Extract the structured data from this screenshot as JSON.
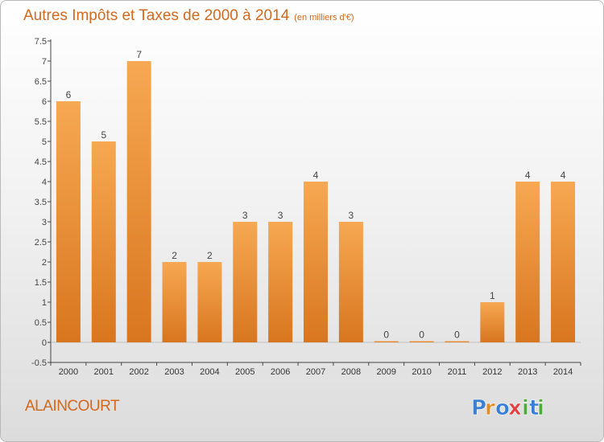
{
  "header": {
    "title": "Autres Impôts et Taxes de 2000 à 2014",
    "unit": "(en milliers d'€)"
  },
  "footer": {
    "commune": "ALAINCOURT"
  },
  "logo": {
    "text": "Proxiti",
    "letters": [
      "P",
      "r",
      "o",
      "x",
      "i",
      "t",
      "i"
    ],
    "letter_colors": [
      "#3a7fd6",
      "#e58b1e",
      "#3a7fd6",
      "#e04040",
      "#4fa83a",
      "#3a7fd6",
      "#4fa83a"
    ]
  },
  "colors": {
    "bar_light": "#f7a852",
    "bar_dark": "#d8761f",
    "text_accent": "#d2691e"
  },
  "chart_data": {
    "type": "bar",
    "title": "Autres Impôts et Taxes de 2000 à 2014",
    "categories": [
      "2000",
      "2001",
      "2002",
      "2003",
      "2004",
      "2005",
      "2006",
      "2007",
      "2008",
      "2009",
      "2010",
      "2011",
      "2012",
      "2013",
      "2014"
    ],
    "values": [
      6,
      5,
      7,
      2,
      2,
      3,
      3,
      4,
      3,
      0,
      0,
      0,
      1,
      4,
      4
    ],
    "data_labels": [
      "6",
      "5",
      "7",
      "2",
      "2",
      "3",
      "3",
      "4",
      "3",
      "0",
      "0",
      "0",
      "1",
      "4",
      "4"
    ],
    "yticks": [
      "-0.5",
      "0",
      "0.5",
      "1",
      "1.5",
      "2",
      "2.5",
      "3",
      "3.5",
      "4",
      "4.5",
      "5",
      "5.5",
      "6",
      "6.5",
      "7",
      "7.5"
    ],
    "ylim": [
      -0.5,
      7.5
    ],
    "grid": false,
    "legend": "none"
  }
}
